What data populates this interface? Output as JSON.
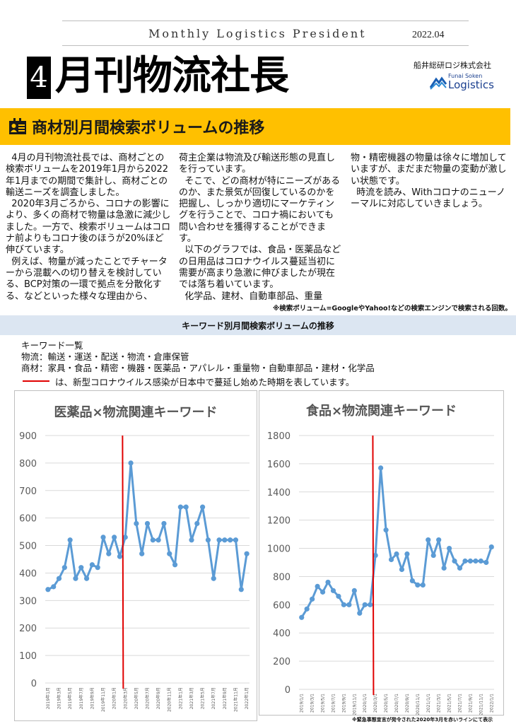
{
  "masthead": {
    "english_title": "Monthly Logistics President",
    "issue_date": "2022.04",
    "issue_number": "4",
    "japanese_title": "月刊物流社長",
    "company_jp": "船井総研ロジ株式会社",
    "logo_sub": "Funai Soken",
    "logo_main": "Logistics"
  },
  "section": {
    "icon": "id-card-icon",
    "title": "商材別月間検索ボリュームの推移",
    "accent_color": "#ffc000"
  },
  "article": {
    "col1": "  4月の月刊物流社長では、商材ごとの検索ボリュームを2019年1月から2022年1月までの期間で集計し、商材ごとの輸送ニーズを調査しました。\n  2020年3月ごろから、コロナの影響により、多くの商材で物量は急激に減少しました。一方で、検索ボリュームはコロナ前よりもコロナ後のほうが20%ほど伸びています。\n  例えば、物量が減ったことでチャーターから混載への切り替えを検討している、BCP対策の一環で拠点を分散化する、などといった様々な理由から、",
    "col2": "荷主企業は物流及び輸送形態の見直しを行っています。\n  そこで、どの商材が特にニーズがあるのか、また景気が回復しているのかを把握し、しっかり適切にマーケティングを行うことで、コロナ禍においても問い合わせを獲得することができます。\n  以下のグラフでは、食品・医薬品などの日用品はコロナウイルス蔓延当初に需要が高まり急激に伸びましたが現在では落ち着いています。\n  化学品、建材、自動車部品、重量",
    "col3": "物・精密機器の物量は徐々に増加していますが、まだまだ物量の変動が激しい状態です。\n  時流を読み、Withコロナのニューノーマルに対応していきましょう。",
    "footnote": "※検索ボリューム=GoogleやYahoo!などの検索エンジンで検索される回数。"
  },
  "keywords_section": {
    "band_title": "キーワード別月間検索ボリュームの推移",
    "heading": "キーワード一覧",
    "logistics_line": "物流：輸送・運送・配送・物流・倉庫保管",
    "products_line": "商材：家具・食品・精密・機器・医薬品・アパレル・重量物・自動車部品・建材・化学品",
    "red_line_note": "は、新型コロナウイルス感染が日本中で蔓延し始めた時期を表しています。",
    "red_line_color": "#e00000"
  },
  "chart_footnote": "※緊急事態宣言が発令された2020年3月を赤いラインにて表示",
  "chart_data": [
    {
      "type": "line",
      "title": "医薬品×物流関連キーワード",
      "xlabel": "",
      "ylabel": "",
      "ylim": [
        0,
        900
      ],
      "yticks": [
        0,
        100,
        200,
        300,
        400,
        500,
        600,
        700,
        800,
        900
      ],
      "grid": true,
      "legend": "none",
      "line_color": "#5b9bd5",
      "annotation": {
        "type": "vertical_line",
        "x": "2020年3月",
        "color": "#e00000"
      },
      "x": [
        "2019年1月",
        "2019年2月",
        "2019年3月",
        "2019年4月",
        "2019年5月",
        "2019年6月",
        "2019年7月",
        "2019年8月",
        "2019年9月",
        "2019年10月",
        "2019年11月",
        "2019年12月",
        "2020年1月",
        "2020年2月",
        "2020年3月",
        "2020年4月",
        "2020年5月",
        "2020年6月",
        "2020年7月",
        "2020年8月",
        "2020年9月",
        "2020年10月",
        "2020年11月",
        "2020年12月",
        "2021年1月",
        "2021年2月",
        "2021年3月",
        "2021年4月",
        "2021年5月",
        "2021年6月",
        "2021年7月",
        "2021年8月",
        "2021年9月",
        "2021年10月",
        "2021年11月",
        "2021年12月",
        "2022年1月"
      ],
      "tick_labels": [
        "2019年1月",
        "2019年3月",
        "2019年5月",
        "2019年7月",
        "2019年9月",
        "2019年11月",
        "2020年1月",
        "2020年3月",
        "2020年5月",
        "2020年7月",
        "2020年9月",
        "2020年11月",
        "2021年1月",
        "2021年3月",
        "2021年5月",
        "2021年7月",
        "2021年9月",
        "2021年11月",
        "2022年1月"
      ],
      "series": [
        {
          "name": "医薬品×物流関連キーワード",
          "values": [
            340,
            350,
            380,
            420,
            520,
            380,
            420,
            380,
            430,
            420,
            530,
            470,
            530,
            460,
            530,
            800,
            580,
            470,
            580,
            520,
            520,
            580,
            470,
            430,
            640,
            640,
            520,
            580,
            640,
            520,
            380,
            520,
            520,
            520,
            520,
            340,
            470
          ]
        }
      ]
    },
    {
      "type": "line",
      "title": "食品×物流関連キーワード",
      "xlabel": "",
      "ylabel": "",
      "ylim": [
        0,
        1800
      ],
      "yticks": [
        0,
        200,
        400,
        600,
        800,
        1000,
        1200,
        1400,
        1600,
        1800
      ],
      "grid": true,
      "legend": "none",
      "line_color": "#5b9bd5",
      "annotation": {
        "type": "vertical_line",
        "x": "2020/3/1",
        "color": "#e00000"
      },
      "x": [
        "2019/1/1",
        "2019/2/1",
        "2019/3/1",
        "2019/4/1",
        "2019/5/1",
        "2019/6/1",
        "2019/7/1",
        "2019/8/1",
        "2019/9/1",
        "2019/10/1",
        "2019/11/1",
        "2019/12/1",
        "2020/1/1",
        "2020/2/1",
        "2020/3/1",
        "2020/4/1",
        "2020/5/1",
        "2020/6/1",
        "2020/7/1",
        "2020/8/1",
        "2020/9/1",
        "2020/10/1",
        "2020/11/1",
        "2020/12/1",
        "2021/1/1",
        "2021/2/1",
        "2021/3/1",
        "2021/4/1",
        "2021/5/1",
        "2021/6/1",
        "2021/7/1",
        "2021/8/1",
        "2021/9/1",
        "2021/10/1",
        "2021/11/1",
        "2021/12/1",
        "2022/1/1"
      ],
      "tick_labels": [
        "2019/1/1",
        "2019/3/1",
        "2019/5/1",
        "2019/7/1",
        "2019/9/1",
        "2019/11/1",
        "2020/1/1",
        "2020/3/1",
        "2020/5/1",
        "2020/7/1",
        "2020/9/1",
        "2020/11/1",
        "2021/1/1",
        "2021/3/1",
        "2021/5/1",
        "2021/7/1",
        "2021/9/1",
        "2021/11/1",
        "2022/1/1"
      ],
      "series": [
        {
          "name": "食品×物流関連キーワード",
          "values": [
            510,
            570,
            640,
            730,
            690,
            760,
            700,
            660,
            600,
            600,
            700,
            540,
            600,
            600,
            950,
            1570,
            1130,
            920,
            960,
            850,
            960,
            770,
            740,
            740,
            1060,
            950,
            1060,
            860,
            1000,
            910,
            860,
            910,
            910,
            910,
            910,
            900,
            1010
          ]
        }
      ]
    }
  ]
}
